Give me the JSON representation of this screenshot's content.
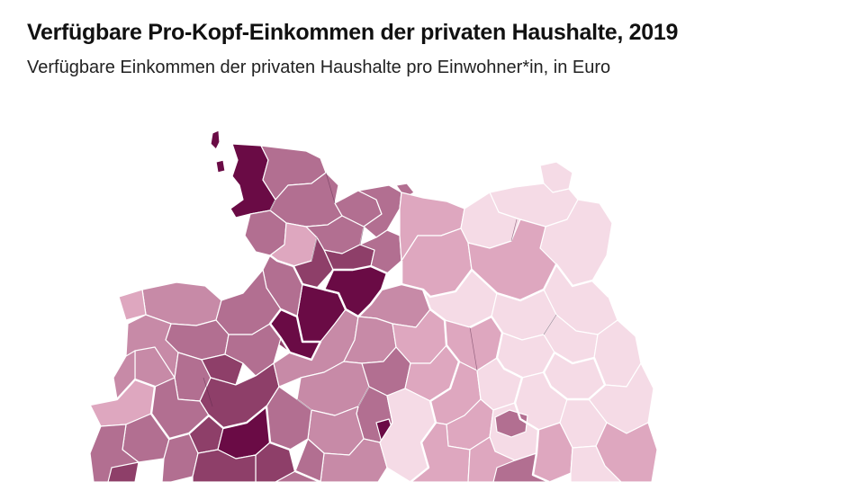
{
  "header": {
    "title": "Verfügbare Pro-Kopf-Einkommen der privaten Haushalte, 2019",
    "subtitle": "Verfügbare Einkommen der privaten Haushalte pro Einwohner*in, in Euro"
  },
  "map": {
    "palette": [
      "#f5dbe6",
      "#dea7bf",
      "#c78aa7",
      "#b26f91",
      "#8e3f69",
      "#6a0b45"
    ]
  }
}
